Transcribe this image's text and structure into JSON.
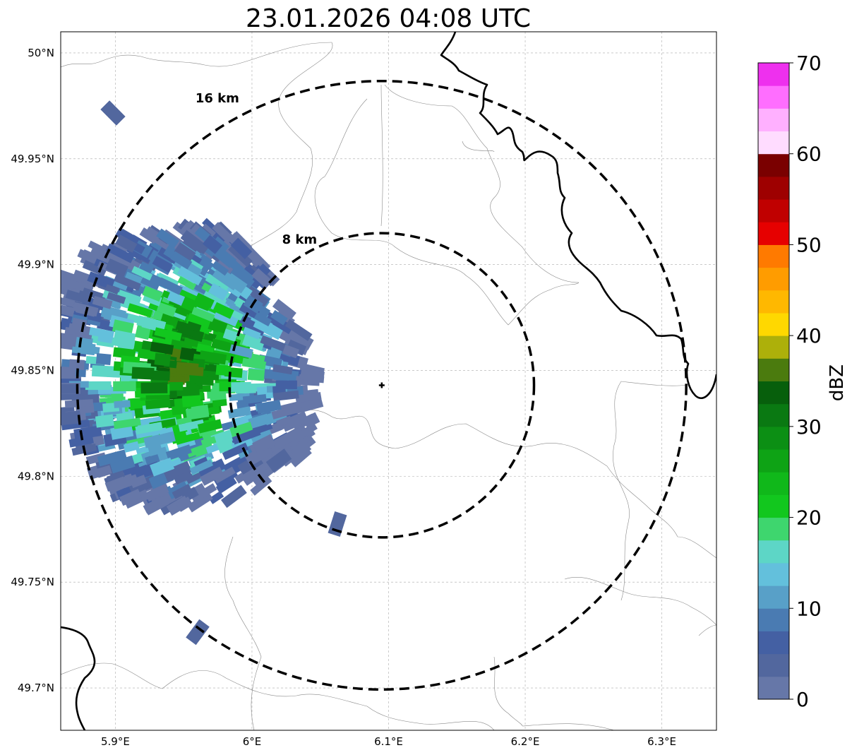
{
  "title": "23.01.2026 04:08 UTC",
  "map": {
    "lon_range": [
      5.86,
      6.34
    ],
    "lat_range": [
      49.68,
      50.01
    ],
    "lon_ticks": [
      {
        "value": 5.9,
        "label": "5.9°E"
      },
      {
        "value": 6.0,
        "label": "6°E"
      },
      {
        "value": 6.1,
        "label": "6.1°E"
      },
      {
        "value": 6.2,
        "label": "6.2°E"
      },
      {
        "value": 6.3,
        "label": "6.3°E"
      }
    ],
    "lat_ticks": [
      {
        "value": 50.0,
        "label": "50°N"
      },
      {
        "value": 49.95,
        "label": "49.95°N"
      },
      {
        "value": 49.9,
        "label": "49.9°N"
      },
      {
        "value": 49.85,
        "label": "49.85°N"
      },
      {
        "value": 49.8,
        "label": "49.8°N"
      },
      {
        "value": 49.75,
        "label": "49.75°N"
      },
      {
        "value": 49.7,
        "label": "49.7°N"
      }
    ],
    "grid": true,
    "radar_site": {
      "lon": 6.095,
      "lat": 49.843
    },
    "range_rings": [
      {
        "km": 8,
        "label": "8 km"
      },
      {
        "km": 16,
        "label": "16 km"
      }
    ]
  },
  "colorbar": {
    "label": "dBZ",
    "min": 0,
    "max": 70,
    "ticks": [
      {
        "value": 0,
        "label": "0"
      },
      {
        "value": 10,
        "label": "10"
      },
      {
        "value": 20,
        "label": "20"
      },
      {
        "value": 30,
        "label": "30"
      },
      {
        "value": 40,
        "label": "40"
      },
      {
        "value": 50,
        "label": "50"
      },
      {
        "value": 60,
        "label": "60"
      },
      {
        "value": 70,
        "label": "70"
      }
    ],
    "bins": [
      {
        "from": 0,
        "to": 2.5,
        "color": "#6677a8"
      },
      {
        "from": 2.5,
        "to": 5,
        "color": "#52679e"
      },
      {
        "from": 5,
        "to": 7.5,
        "color": "#4460a3"
      },
      {
        "from": 7.5,
        "to": 10,
        "color": "#4a7bb2"
      },
      {
        "from": 10,
        "to": 12.5,
        "color": "#58a0c8"
      },
      {
        "from": 12.5,
        "to": 15,
        "color": "#63c0dc"
      },
      {
        "from": 15,
        "to": 17.5,
        "color": "#5dd6c6"
      },
      {
        "from": 17.5,
        "to": 20,
        "color": "#3ed66e"
      },
      {
        "from": 20,
        "to": 22.5,
        "color": "#12c71e"
      },
      {
        "from": 22.5,
        "to": 25,
        "color": "#10b81a"
      },
      {
        "from": 25,
        "to": 27.5,
        "color": "#0ea315"
      },
      {
        "from": 27.5,
        "to": 30,
        "color": "#0c8f14"
      },
      {
        "from": 30,
        "to": 32.5,
        "color": "#0a7912"
      },
      {
        "from": 32.5,
        "to": 35,
        "color": "#075f0c"
      },
      {
        "from": 35,
        "to": 37.5,
        "color": "#4b7b0e"
      },
      {
        "from": 37.5,
        "to": 40,
        "color": "#adb00a"
      },
      {
        "from": 40,
        "to": 42.5,
        "color": "#ffd800"
      },
      {
        "from": 42.5,
        "to": 45,
        "color": "#ffb800"
      },
      {
        "from": 45,
        "to": 47.5,
        "color": "#ff9c00"
      },
      {
        "from": 47.5,
        "to": 50,
        "color": "#ff7a00"
      },
      {
        "from": 50,
        "to": 52.5,
        "color": "#e60000"
      },
      {
        "from": 52.5,
        "to": 55,
        "color": "#c00000"
      },
      {
        "from": 55,
        "to": 57.5,
        "color": "#9e0000"
      },
      {
        "from": 57.5,
        "to": 60,
        "color": "#7a0000"
      },
      {
        "from": 60,
        "to": 62.5,
        "color": "#ffdcff"
      },
      {
        "from": 62.5,
        "to": 65,
        "color": "#ffb0ff"
      },
      {
        "from": 65,
        "to": 67.5,
        "color": "#ff6eff"
      },
      {
        "from": 67.5,
        "to": 70,
        "color": "#ee30ee"
      }
    ]
  },
  "echo_region": {
    "dbz_min": 0,
    "dbz_max": 36,
    "core_dbz": 30
  }
}
